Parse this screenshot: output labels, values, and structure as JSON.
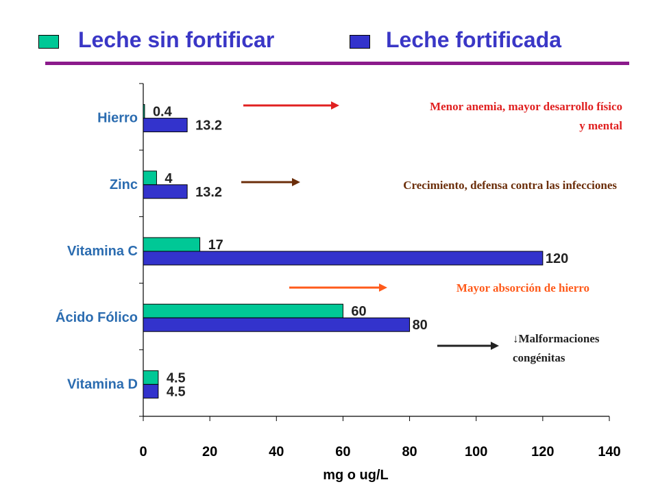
{
  "legend": {
    "items": [
      {
        "label": "Leche sin fortificar",
        "color": "#00c896"
      },
      {
        "label": "Leche fortificada",
        "color": "#3333cc"
      }
    ],
    "text_color": "#3a37c6",
    "divider_color": "#8b1a8b"
  },
  "chart_data": {
    "type": "bar",
    "orientation": "horizontal",
    "categories": [
      "Hierro",
      "Zinc",
      "Vitamina C",
      "Ácido Fólico",
      "Vitamina D"
    ],
    "series": [
      {
        "name": "Leche sin fortificar",
        "values": [
          0.4,
          4,
          17,
          60,
          4.5
        ],
        "value_labels": [
          "0.4",
          "4",
          "17",
          "60",
          "4.5"
        ],
        "color": "#00c896"
      },
      {
        "name": "Leche fortificada",
        "values": [
          13.2,
          13.2,
          120,
          80,
          4.5
        ],
        "value_labels": [
          "13.2",
          "13.2",
          "120",
          "80",
          "4.5"
        ],
        "color": "#3333cc"
      }
    ],
    "xlabel": "mg o ug/L",
    "xticks": [
      "0",
      "20",
      "40",
      "60",
      "80",
      "100",
      "120",
      "140"
    ],
    "xlim": [
      0,
      140
    ],
    "legend_placement": "top",
    "grid": false,
    "annotations": [
      {
        "text_lines": [
          "Menor anemia, mayor desarrollo físico",
          "y mental"
        ],
        "color": "#e02020",
        "category": "Hierro"
      },
      {
        "text_lines": [
          "Crecimiento, defensa contra las infecciones"
        ],
        "color": "#6b2e0a",
        "category": "Zinc"
      },
      {
        "text_lines": [
          "Mayor  absorción de hierro"
        ],
        "color": "#ff5a1a",
        "category": "Vitamina C"
      },
      {
        "text_lines": [
          "Malformaciones",
          "congénitas"
        ],
        "prefix": "↓",
        "color": "#222222",
        "category": "Ácido Fólico"
      }
    ]
  }
}
